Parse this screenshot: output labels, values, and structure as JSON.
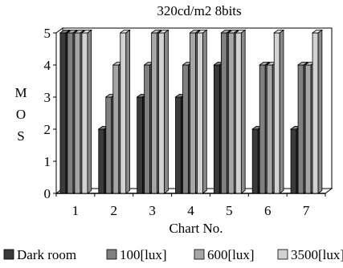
{
  "chart_data": {
    "type": "bar",
    "title": "320cd/m2  8bits",
    "xlabel": "Chart No.",
    "ylabel": "M O S",
    "ylabel_letters": [
      "M",
      "O",
      "S"
    ],
    "categories": [
      "1",
      "2",
      "3",
      "4",
      "5",
      "6",
      "7"
    ],
    "ylim": [
      0,
      5
    ],
    "yticks": [
      "0",
      "1",
      "2",
      "3",
      "4",
      "5"
    ],
    "series": [
      {
        "name": "Dark room",
        "color": "#3a3a3a",
        "values": [
          5,
          2,
          3,
          3,
          4,
          2,
          2
        ]
      },
      {
        "name": "100[lux]",
        "color": "#808080",
        "values": [
          5,
          3,
          4,
          4,
          5,
          4,
          4
        ]
      },
      {
        "name": "600[lux]",
        "color": "#a6a6a6",
        "values": [
          5,
          4,
          5,
          5,
          5,
          4,
          4
        ]
      },
      {
        "name": "3500[lux]",
        "color": "#d2d2d2",
        "values": [
          5,
          5,
          5,
          5,
          5,
          5,
          5
        ]
      }
    ],
    "grid": false,
    "legend_position": "bottom",
    "style": "3d-bar"
  }
}
